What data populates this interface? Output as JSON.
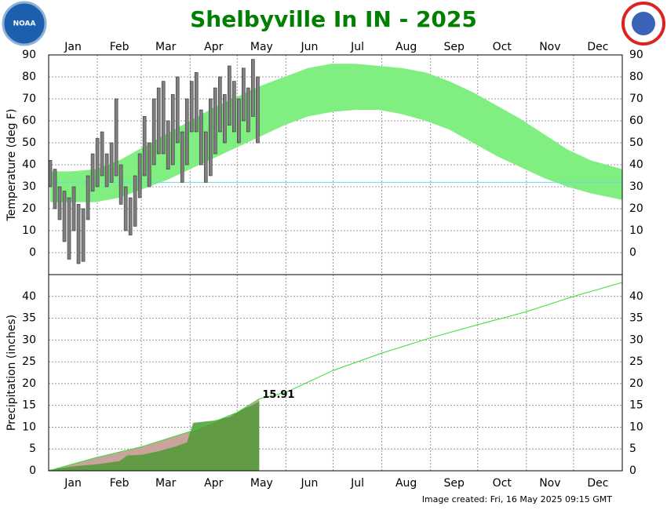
{
  "title": "Shelbyville In IN - 2025",
  "footer": "Image created: Fri, 16 May 2025 09:15 GMT",
  "logo_text": "NOAA",
  "chart_data": [
    {
      "type": "temperature",
      "ylabel": "Temperature (deg F)",
      "ylim": [
        -10,
        90
      ],
      "yticks": [
        0,
        10,
        20,
        30,
        40,
        50,
        60,
        70,
        80,
        90
      ],
      "xlim": [
        0,
        365
      ],
      "xticks": [
        0,
        31,
        59,
        90,
        120,
        151,
        181,
        212,
        243,
        273,
        304,
        334,
        365
      ],
      "categories": [
        "Jan",
        "Feb",
        "Mar",
        "Apr",
        "May",
        "Jun",
        "Jul",
        "Aug",
        "Sep",
        "Oct",
        "Nov",
        "Dec"
      ],
      "grid": true,
      "freezing_line": 32,
      "freezing_color": "#66dddd",
      "normal": {
        "color": "#80ee80",
        "x": [
          1,
          15,
          30,
          45,
          60,
          75,
          90,
          105,
          120,
          135,
          150,
          165,
          180,
          195,
          210,
          225,
          240,
          255,
          270,
          285,
          300,
          315,
          330,
          345,
          365
        ],
        "high": [
          37,
          37,
          38,
          42,
          48,
          54,
          60,
          66,
          71,
          76,
          80,
          84,
          86,
          86,
          85,
          84,
          82,
          78,
          73,
          67,
          61,
          54,
          47,
          42,
          38
        ],
        "low": [
          23,
          23,
          23,
          25,
          29,
          33,
          38,
          43,
          48,
          53,
          58,
          62,
          64,
          65,
          65,
          63,
          60,
          56,
          50,
          44,
          39,
          34,
          30,
          27,
          24
        ]
      },
      "observed": {
        "color": "#808080",
        "edge": "#333333",
        "x": [
          1,
          4,
          7,
          10,
          13,
          16,
          19,
          22,
          25,
          28,
          31,
          34,
          37,
          40,
          43,
          46,
          49,
          52,
          55,
          58,
          61,
          64,
          67,
          70,
          73,
          76,
          79,
          82,
          85,
          88,
          91,
          94,
          97,
          100,
          103,
          106,
          109,
          112,
          115,
          118,
          121,
          124,
          127,
          130,
          133
        ],
        "high": [
          42,
          38,
          30,
          28,
          25,
          30,
          22,
          20,
          35,
          45,
          52,
          55,
          45,
          50,
          70,
          40,
          30,
          25,
          35,
          45,
          62,
          50,
          70,
          75,
          78,
          60,
          72,
          80,
          55,
          70,
          78,
          82,
          65,
          55,
          70,
          75,
          80,
          72,
          85,
          78,
          70,
          84,
          75,
          88,
          80
        ],
        "low": [
          30,
          20,
          15,
          5,
          -3,
          10,
          -5,
          -4,
          15,
          28,
          30,
          35,
          30,
          32,
          35,
          22,
          10,
          8,
          12,
          25,
          35,
          30,
          40,
          45,
          45,
          38,
          40,
          50,
          32,
          40,
          55,
          55,
          40,
          32,
          35,
          45,
          55,
          50,
          58,
          55,
          50,
          60,
          55,
          62,
          50
        ]
      }
    },
    {
      "type": "precipitation",
      "ylabel": "Precipitation (inches)",
      "ylim": [
        0,
        45
      ],
      "yticks": [
        0,
        5,
        10,
        15,
        20,
        25,
        30,
        35,
        40
      ],
      "xlim": [
        0,
        365
      ],
      "xticks": [
        0,
        31,
        59,
        90,
        120,
        151,
        181,
        212,
        243,
        273,
        304,
        334,
        365
      ],
      "categories": [
        "Jan",
        "Feb",
        "Mar",
        "Apr",
        "May",
        "Jun",
        "Jul",
        "Aug",
        "Sep",
        "Oct",
        "Nov",
        "Dec"
      ],
      "grid": true,
      "normal": {
        "color": "#33dd33",
        "fill": "#c8a49c",
        "x": [
          0,
          31,
          59,
          90,
          120,
          134,
          151,
          181,
          212,
          243,
          273,
          304,
          334,
          365
        ],
        "values": [
          0,
          3.1,
          5.5,
          9,
          13.4,
          16.5,
          18,
          23,
          27,
          30.5,
          33.5,
          36.5,
          40,
          43.2
        ]
      },
      "observed": {
        "color": "#4f9a36",
        "x": [
          0,
          15,
          31,
          45,
          50,
          60,
          70,
          80,
          88,
          92,
          105,
          115,
          120,
          128,
          134
        ],
        "values": [
          0.2,
          1.0,
          1.5,
          2.2,
          3.5,
          3.7,
          4.5,
          5.5,
          6.5,
          11.0,
          11.5,
          12.3,
          13.5,
          14.8,
          15.91
        ]
      }
    }
  ]
}
